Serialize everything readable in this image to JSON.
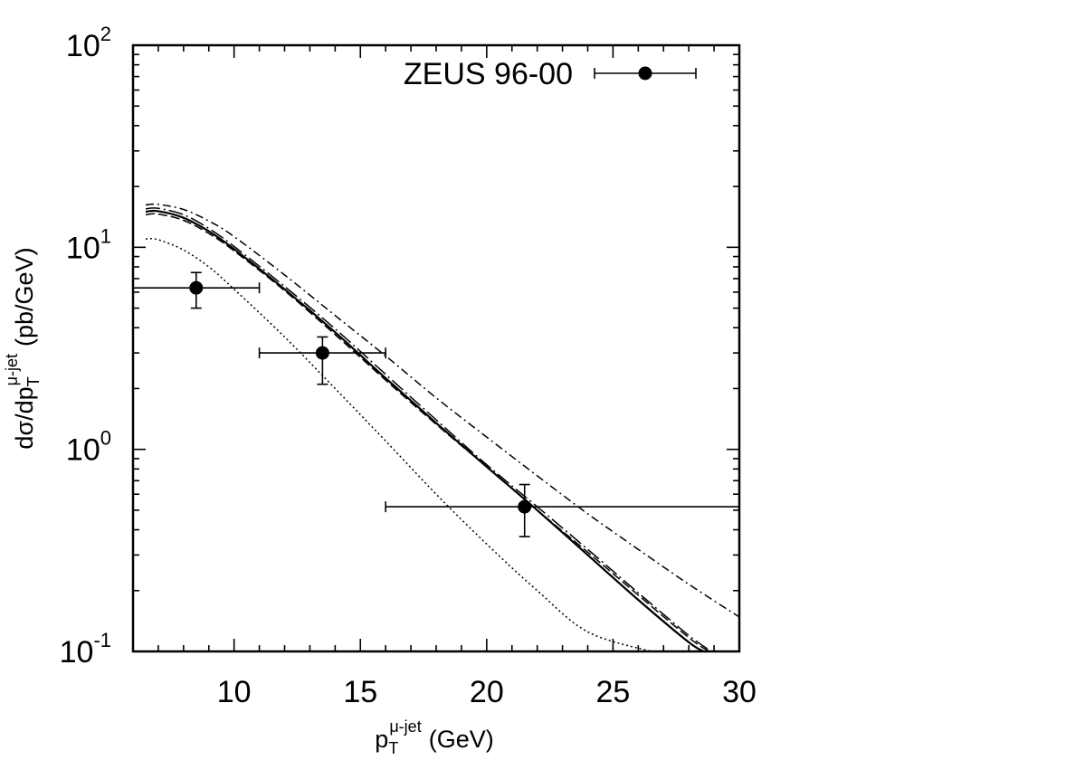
{
  "chart_data": {
    "type": "scatter",
    "title": "",
    "xlabel": {
      "base": "p",
      "sub": "T",
      "sup": "μ-jet",
      "unit": "(GeV)"
    },
    "ylabel": {
      "prefix": "dσ/dp",
      "sub": "T",
      "sup": "μ-jet",
      "unit": "(pb/GeV)"
    },
    "xlim": [
      6,
      30
    ],
    "ylim": [
      0.1,
      100
    ],
    "yscale": "log",
    "grid": false,
    "legend_position": "top-right",
    "x_ticks": [
      {
        "value": 10,
        "label": "10"
      },
      {
        "value": 15,
        "label": "15"
      },
      {
        "value": 20,
        "label": "20"
      },
      {
        "value": 25,
        "label": "25"
      },
      {
        "value": 30,
        "label": "30"
      }
    ],
    "y_ticks": [
      {
        "value": 100,
        "base": "10",
        "exp": "2"
      },
      {
        "value": 10,
        "base": "10",
        "exp": "1"
      },
      {
        "value": 1,
        "base": "10",
        "exp": "0"
      },
      {
        "value": 0.1,
        "base": "10",
        "exp": "-1"
      }
    ],
    "series": [
      {
        "name": "ZEUS 96-00",
        "style": "points",
        "color": "#000000",
        "points": [
          {
            "x": 8.5,
            "xerr": [
              2.5,
              2.5
            ],
            "y": 6.3,
            "yerr": [
              1.3,
              1.2
            ]
          },
          {
            "x": 13.5,
            "xerr": [
              2.5,
              2.5
            ],
            "y": 3.0,
            "yerr": [
              0.9,
              0.6
            ]
          },
          {
            "x": 21.5,
            "xerr": [
              5.5,
              8.5
            ],
            "y": 0.52,
            "yerr": [
              0.15,
              0.15
            ]
          }
        ]
      },
      {
        "style": "solid",
        "color": "#000000",
        "x": [
          6.5,
          7,
          8,
          9,
          10,
          12,
          14,
          16,
          18,
          20,
          22,
          24,
          26,
          28,
          28.6
        ],
        "y": [
          15.0,
          15.1,
          14.0,
          12.0,
          9.8,
          6.2,
          3.8,
          2.25,
          1.35,
          0.82,
          0.5,
          0.3,
          0.18,
          0.111,
          0.1
        ]
      },
      {
        "style": "dashed",
        "color": "#000000",
        "x": [
          6.5,
          7,
          8,
          9,
          10,
          12,
          14,
          16,
          18,
          20,
          22,
          24,
          26,
          28,
          28.8
        ],
        "y": [
          14.5,
          14.6,
          13.6,
          11.7,
          9.6,
          6.1,
          3.7,
          2.2,
          1.33,
          0.82,
          0.5,
          0.31,
          0.19,
          0.117,
          0.1
        ]
      },
      {
        "style": "long-dash-dot",
        "color": "#000000",
        "x": [
          6.5,
          7,
          8,
          9,
          10,
          12,
          14,
          16,
          18,
          20,
          22,
          24,
          26,
          28,
          28.9
        ],
        "y": [
          15.5,
          15.6,
          14.5,
          12.4,
          10.1,
          6.4,
          3.95,
          2.35,
          1.4,
          0.84,
          0.52,
          0.32,
          0.195,
          0.12,
          0.1
        ]
      },
      {
        "style": "dash-dot",
        "color": "#000000",
        "x": [
          6.5,
          7,
          8,
          9,
          10,
          12,
          14,
          16,
          18,
          20,
          22,
          24,
          26,
          28,
          30
        ],
        "y": [
          16.2,
          16.3,
          15.4,
          13.5,
          11.3,
          7.3,
          4.6,
          2.9,
          1.8,
          1.15,
          0.74,
          0.48,
          0.32,
          0.215,
          0.148
        ]
      },
      {
        "style": "dotted",
        "color": "#000000",
        "x": [
          6.5,
          7,
          8,
          9,
          10,
          12,
          14,
          16,
          18,
          20,
          22,
          24,
          26.5
        ],
        "y": [
          11.0,
          10.9,
          9.7,
          8.0,
          6.2,
          3.6,
          2.0,
          1.1,
          0.6,
          0.34,
          0.2,
          0.125,
          0.1
        ]
      }
    ]
  }
}
